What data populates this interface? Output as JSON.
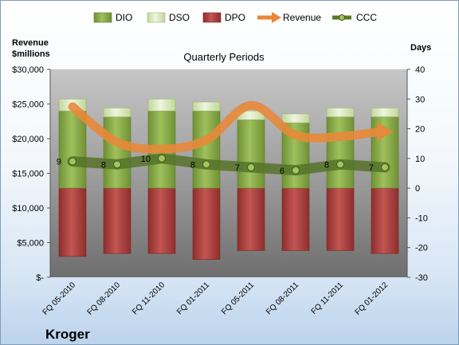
{
  "chart_data": {
    "type": "bar",
    "title": "Quarterly Periods",
    "company": "Kroger",
    "y_left_label": [
      "Revenue",
      "$millions"
    ],
    "y_right_label": "Days",
    "y_left_ticks": [
      "$30,000",
      "$25,000",
      "$20,000",
      "$15,000",
      "$10,000",
      "$5,000",
      "$-"
    ],
    "y_left_range": [
      0,
      30000
    ],
    "y_right_ticks": [
      "40",
      "30",
      "20",
      "10",
      "0",
      "-10",
      "-20",
      "-30"
    ],
    "y_right_range": [
      -30,
      40
    ],
    "categories": [
      "FQ 05-2010",
      "FQ 08-2010",
      "FQ 11-2010",
      "FQ 01-2011",
      "FQ 05-2011",
      "FQ 08-2011",
      "FQ 11-2011",
      "FQ 01-2012"
    ],
    "legend_position": "top",
    "series": [
      {
        "name": "DIO",
        "axis": "right",
        "kind": "bar",
        "color": "#8db04a",
        "values": [
          26,
          24,
          26,
          26,
          23,
          22,
          24,
          24
        ]
      },
      {
        "name": "DSO",
        "axis": "right",
        "kind": "bar",
        "color": "#d8e8b8",
        "values": [
          4,
          3,
          4,
          3,
          3,
          3,
          3,
          3
        ]
      },
      {
        "name": "DPO",
        "axis": "right",
        "kind": "bar-negative",
        "color": "#b84240",
        "values": [
          -23,
          -22,
          -22,
          -24,
          -21,
          -21,
          -21,
          -22
        ]
      },
      {
        "name": "Revenue",
        "axis": "left",
        "kind": "line",
        "color": "#e8883a",
        "values": [
          24600,
          19500,
          18500,
          19800,
          24800,
          20500,
          20300,
          21000
        ]
      },
      {
        "name": "CCC",
        "axis": "right",
        "kind": "line-labeled",
        "color": "#5a7a2a",
        "values": [
          9,
          8,
          10,
          8,
          7,
          6,
          8,
          7
        ]
      }
    ]
  }
}
